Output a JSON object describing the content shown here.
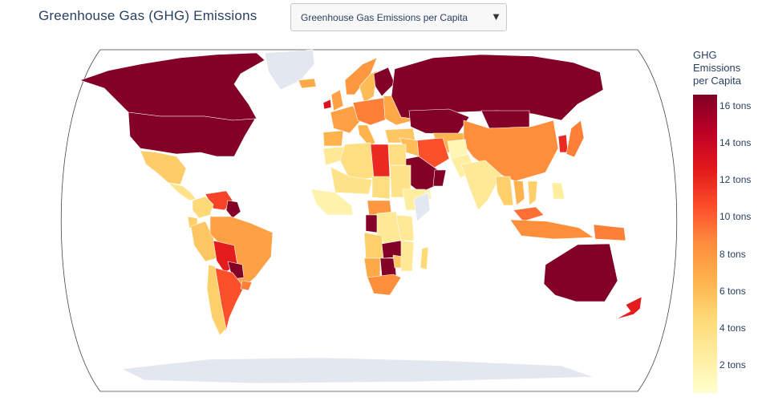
{
  "header": {
    "title": "Greenhouse Gas (GHG) Emissions",
    "dropdown_selected": "Greenhouse Gas Emissions per Capita"
  },
  "colorbar": {
    "title_lines": [
      "GHG",
      "Emissions",
      "per Capita"
    ],
    "ticks": [
      {
        "value": 16,
        "label": "16 tons"
      },
      {
        "value": 14,
        "label": "14 tons"
      },
      {
        "value": 12,
        "label": "12 tons"
      },
      {
        "value": 10,
        "label": "10 tons"
      },
      {
        "value": 8,
        "label": "8 tons"
      },
      {
        "value": 6,
        "label": "6 tons"
      },
      {
        "value": 4,
        "label": "4 tons"
      },
      {
        "value": 2,
        "label": "2 tons"
      }
    ],
    "range": [
      0.5,
      16.6
    ],
    "colorscale": [
      "#ffffcc",
      "#ffeda0",
      "#fed976",
      "#feb24c",
      "#fd8d3c",
      "#fc4e2a",
      "#e31a1c",
      "#bd0026",
      "#800026"
    ]
  },
  "colors": {
    "missing": "#e3e7f0",
    "ocean_bg": "#ffffff",
    "frame": "#444444"
  },
  "chart_data": {
    "type": "choropleth",
    "projection": "robinson",
    "unit": "tons",
    "regions": [
      {
        "name": "Canada",
        "value": 16.5
      },
      {
        "name": "United States",
        "value": 16.5
      },
      {
        "name": "Greenland",
        "value": null
      },
      {
        "name": "Mexico",
        "value": 5.2
      },
      {
        "name": "Central America",
        "value": 3.5
      },
      {
        "name": "Venezuela",
        "value": 11.0
      },
      {
        "name": "Guyana",
        "value": 16.5
      },
      {
        "name": "Colombia",
        "value": 4.5
      },
      {
        "name": "Ecuador",
        "value": 5.0
      },
      {
        "name": "Peru",
        "value": 5.5
      },
      {
        "name": "Brazil",
        "value": 7.5
      },
      {
        "name": "Bolivia",
        "value": 12.5
      },
      {
        "name": "Paraguay",
        "value": 16.5
      },
      {
        "name": "Argentina",
        "value": 10.5
      },
      {
        "name": "Chile",
        "value": 5.0
      },
      {
        "name": "Uruguay",
        "value": 9.0
      },
      {
        "name": "Iceland",
        "value": 7.0
      },
      {
        "name": "Ireland",
        "value": 13.0
      },
      {
        "name": "United Kingdom",
        "value": 7.5
      },
      {
        "name": "Norway",
        "value": 8.0
      },
      {
        "name": "Sweden",
        "value": 6.0
      },
      {
        "name": "Finland",
        "value": 16.5
      },
      {
        "name": "Western Europe",
        "value": 7.5
      },
      {
        "name": "Central Europe",
        "value": 9.0
      },
      {
        "name": "Eastern Europe",
        "value": 7.0
      },
      {
        "name": "Spain",
        "value": 6.5
      },
      {
        "name": "Italy",
        "value": 6.5
      },
      {
        "name": "Turkey",
        "value": 5.5
      },
      {
        "name": "Russia",
        "value": 16.5
      },
      {
        "name": "Kazakhstan",
        "value": 16.5
      },
      {
        "name": "Central Asia",
        "value": 6.5
      },
      {
        "name": "Mongolia",
        "value": 16.5
      },
      {
        "name": "China",
        "value": 8.5
      },
      {
        "name": "Korea",
        "value": 12.0
      },
      {
        "name": "Japan",
        "value": 9.0
      },
      {
        "name": "Iran",
        "value": 10.5
      },
      {
        "name": "Saudi Arabia",
        "value": 16.5
      },
      {
        "name": "Yemen",
        "value": 2.0
      },
      {
        "name": "Oman",
        "value": 16.5
      },
      {
        "name": "Iraq",
        "value": 6.0
      },
      {
        "name": "Afghanistan",
        "value": 1.5
      },
      {
        "name": "Pakistan",
        "value": 2.5
      },
      {
        "name": "India",
        "value": 3.0
      },
      {
        "name": "Southeast Asia",
        "value": 5.0
      },
      {
        "name": "Thailand",
        "value": 6.5
      },
      {
        "name": "Vietnam",
        "value": 5.0
      },
      {
        "name": "Malaysia",
        "value": 9.5
      },
      {
        "name": "Indonesia",
        "value": 8.5
      },
      {
        "name": "Papua New Guinea",
        "value": 9.0
      },
      {
        "name": "Philippines",
        "value": 2.5
      },
      {
        "name": "Australia",
        "value": 16.5
      },
      {
        "name": "New Zealand",
        "value": 12.5
      },
      {
        "name": "Morocco",
        "value": 3.0
      },
      {
        "name": "Algeria",
        "value": 4.0
      },
      {
        "name": "Libya",
        "value": 12.0
      },
      {
        "name": "Egypt",
        "value": 4.0
      },
      {
        "name": "Sahel",
        "value": 3.5
      },
      {
        "name": "Chad",
        "value": 4.0
      },
      {
        "name": "Sudan",
        "value": 3.5
      },
      {
        "name": "Ethiopia",
        "value": 2.5
      },
      {
        "name": "Somalia",
        "value": null
      },
      {
        "name": "West Africa",
        "value": 2.0
      },
      {
        "name": "Central African Republic",
        "value": 8.0
      },
      {
        "name": "Congo",
        "value": 16.5
      },
      {
        "name": "DR Congo",
        "value": 3.0
      },
      {
        "name": "Angola",
        "value": 5.0
      },
      {
        "name": "Namibia",
        "value": 7.0
      },
      {
        "name": "Botswana",
        "value": 16.5
      },
      {
        "name": "Zambia",
        "value": 16.5
      },
      {
        "name": "Zimbabwe",
        "value": 5.5
      },
      {
        "name": "South Africa",
        "value": 8.5
      },
      {
        "name": "Mozambique",
        "value": 3.0
      },
      {
        "name": "Tanzania",
        "value": 3.0
      },
      {
        "name": "Madagascar",
        "value": 4.5
      },
      {
        "name": "Antarctica",
        "value": null
      }
    ]
  }
}
